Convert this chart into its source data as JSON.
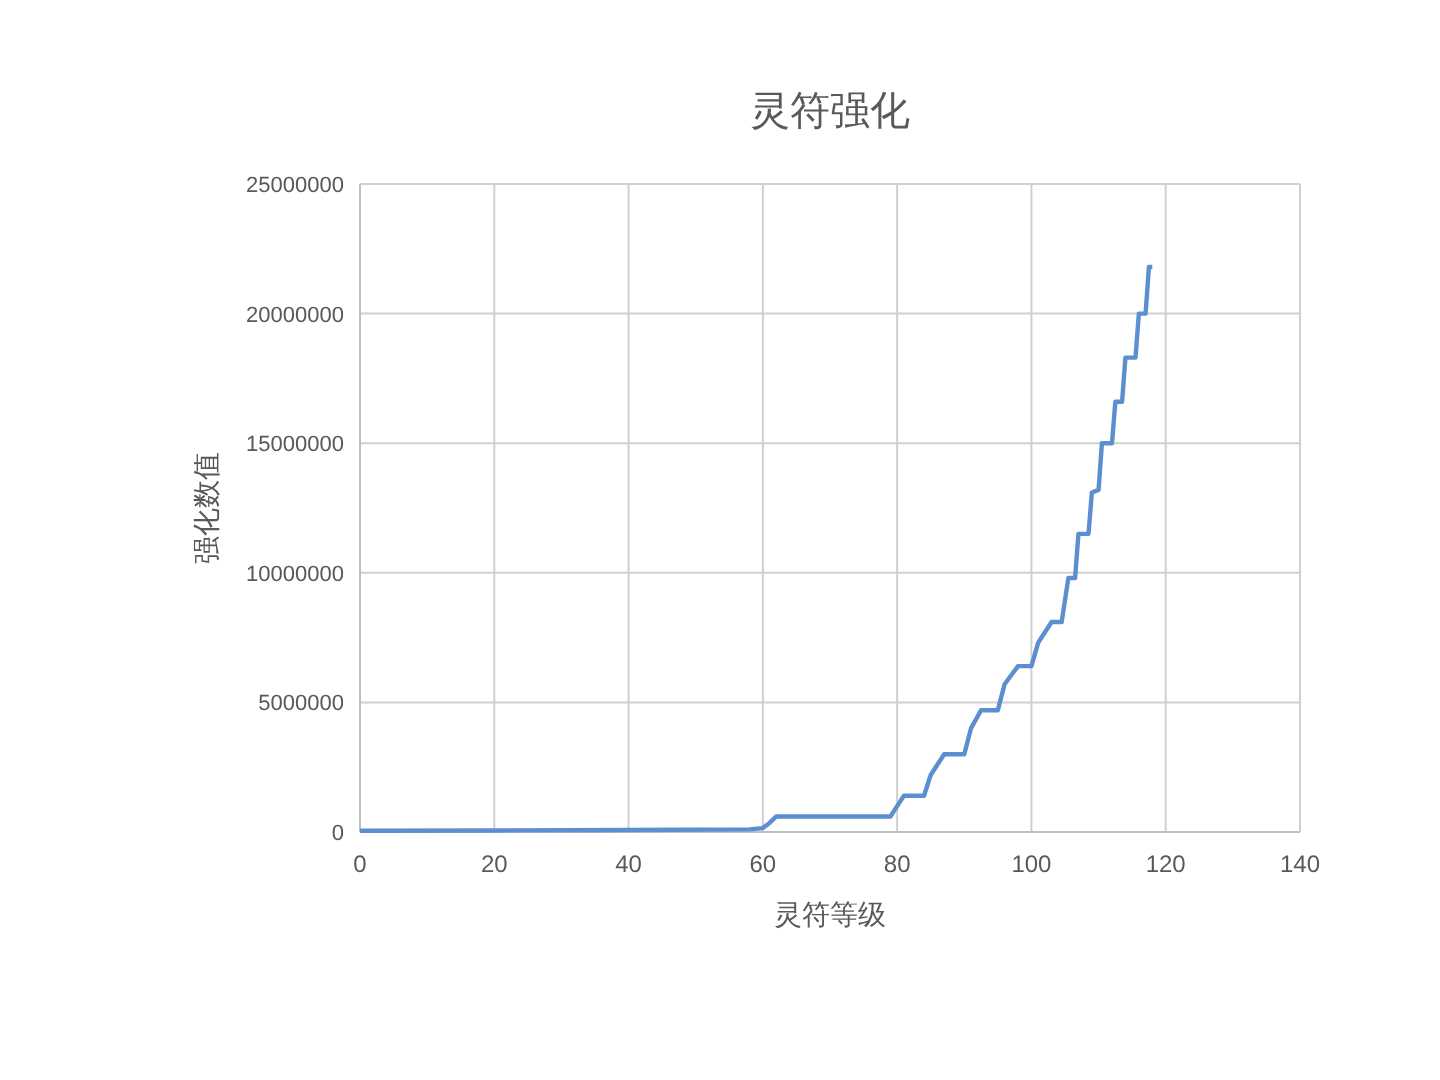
{
  "chart_data": {
    "type": "line",
    "title": "灵符强化",
    "xlabel": "灵符等级",
    "ylabel": "强化数值",
    "x": [
      0,
      20,
      40,
      58,
      60,
      61,
      62,
      70,
      78,
      79,
      80,
      81,
      84,
      85,
      87,
      90,
      91,
      92.5,
      95,
      96,
      98,
      100,
      101,
      103,
      104.5,
      105.5,
      106.5,
      107,
      108.5,
      109,
      110,
      110.5,
      112,
      112.5,
      113.5,
      114,
      115.5,
      116,
      117,
      117.5,
      118
    ],
    "series": [
      {
        "color": "#5b8fd0",
        "values": [
          50000,
          60000,
          80000,
          100000,
          150000,
          350000,
          600000,
          600000,
          600000,
          600000,
          1000000,
          1400000,
          1400000,
          2200000,
          3000000,
          3000000,
          4000000,
          4700000,
          4700000,
          5700000,
          6400000,
          6400000,
          7300000,
          8100000,
          8100000,
          9800000,
          9800000,
          11500000,
          11500000,
          13100000,
          13200000,
          15000000,
          15000000,
          16600000,
          16600000,
          18300000,
          18300000,
          20000000,
          20000000,
          21800000,
          21800000
        ]
      }
    ],
    "xlim": [
      0,
      140
    ],
    "xticks": [
      0,
      20,
      40,
      60,
      80,
      100,
      120,
      140
    ],
    "ylim": [
      0,
      25000000
    ],
    "yticks": [
      0,
      5000000,
      10000000,
      15000000,
      20000000,
      25000000
    ],
    "grid": true
  }
}
